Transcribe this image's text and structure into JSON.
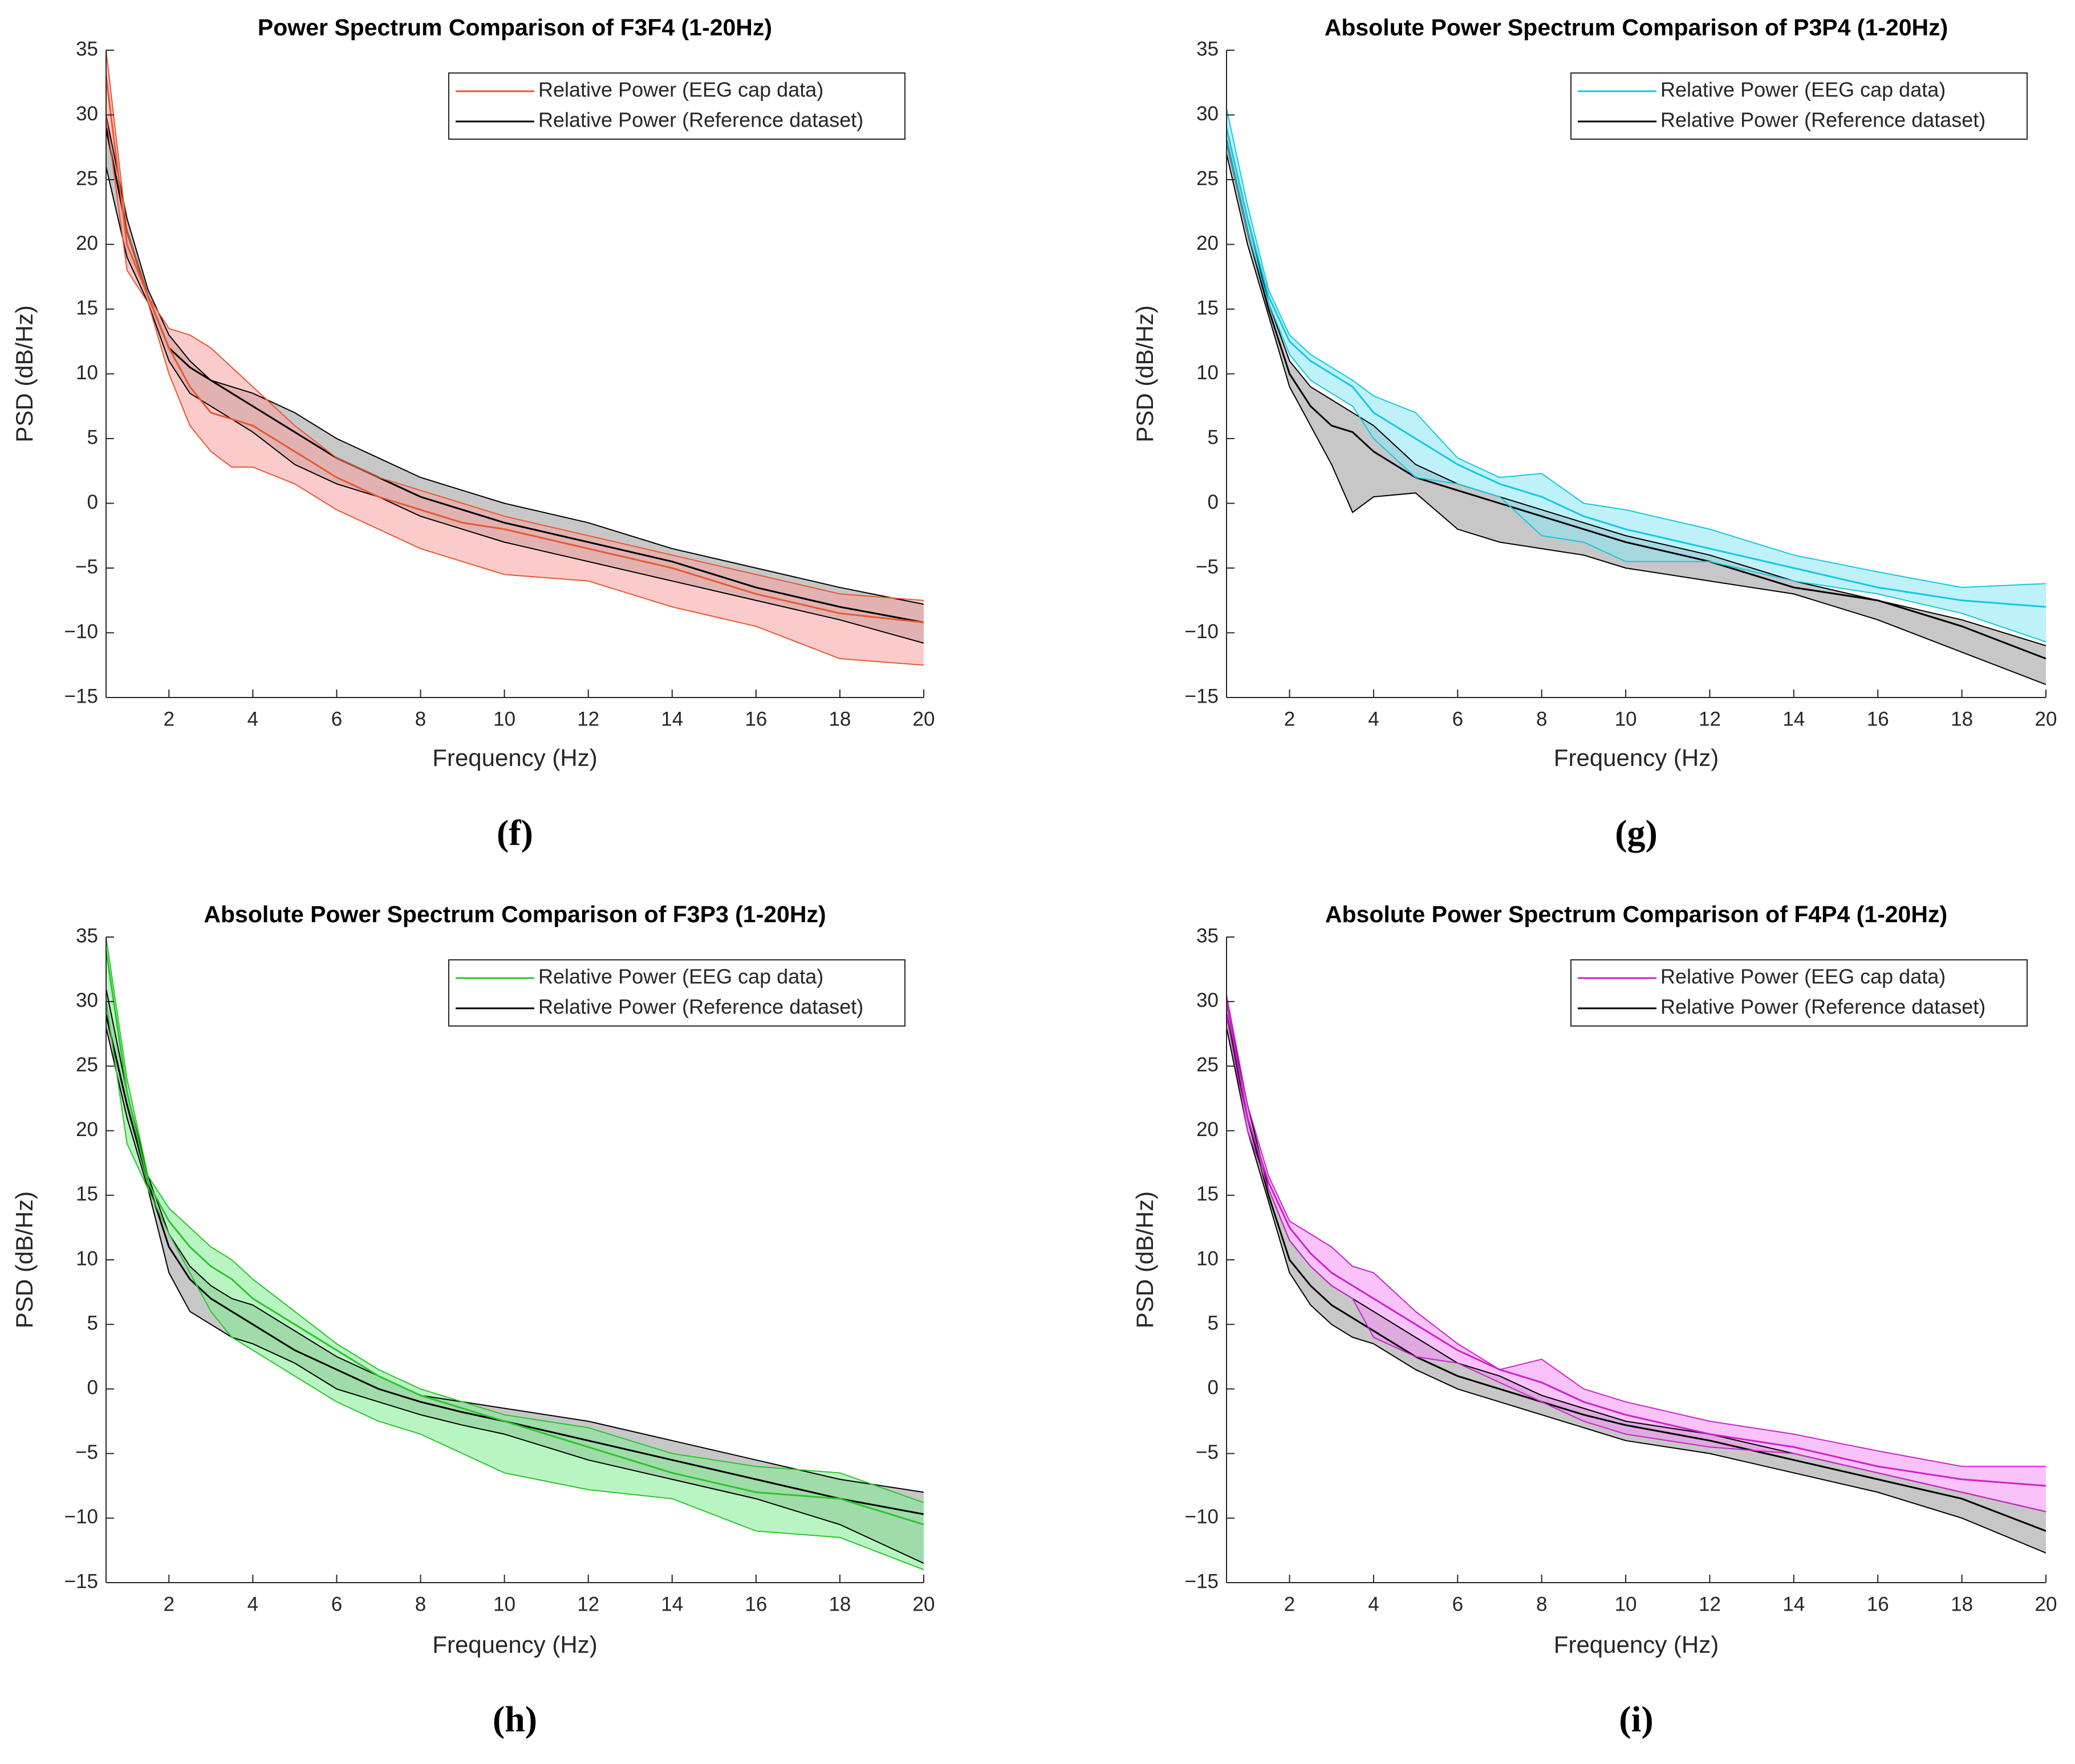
{
  "chart_data": [
    {
      "type": "line",
      "title": "Power Spectrum Comparison of F3F4 (1-20Hz)",
      "xlabel": "Frequency (Hz)",
      "ylabel": "PSD (dB/Hz)",
      "caption": "(f)",
      "legend": "upper right",
      "x": [
        0.5,
        1,
        1.5,
        2,
        2.5,
        3,
        3.5,
        4,
        5,
        6,
        7,
        8,
        9,
        10,
        12,
        14,
        16,
        18,
        20
      ],
      "xlim": [
        0.5,
        20
      ],
      "xticks": [
        2,
        4,
        6,
        8,
        10,
        12,
        14,
        16,
        18,
        20
      ],
      "ylim": [
        -15,
        35
      ],
      "yticks": [
        {
          "value": -15,
          "label": "−15"
        },
        {
          "value": -10,
          "label": "−10"
        },
        {
          "value": -5,
          "label": "−5"
        },
        0,
        5,
        10,
        15,
        20,
        25,
        30,
        35
      ],
      "series": [
        {
          "name": "Relative Power (EEG cap data)",
          "color": "#e8582f",
          "band_color": "#f8a0a0",
          "values": [
            33,
            20,
            16,
            12,
            9,
            7,
            6.5,
            6,
            4,
            2,
            0.5,
            -0.5,
            -1.5,
            -2,
            -3.5,
            -5,
            -7,
            -8.5,
            -9.2
          ],
          "upper": [
            35,
            21,
            16,
            13.5,
            13,
            12,
            10.5,
            9,
            6,
            3.5,
            2,
            1,
            0,
            -1,
            -2.5,
            -4,
            -5.5,
            -7,
            -7.5
          ],
          "lower": [
            30,
            18,
            15.5,
            10,
            6,
            4,
            2.8,
            2.8,
            1.5,
            -0.5,
            -2,
            -3.5,
            -4.5,
            -5.5,
            -6,
            -8,
            -9.5,
            -12,
            -12.5
          ]
        },
        {
          "name": "Relative Power (Reference dataset)",
          "color": "#000000",
          "band_color": "#b4b4b4",
          "values": [
            29,
            21,
            16,
            12,
            10.5,
            9.5,
            8.5,
            7.5,
            5.5,
            3.5,
            2,
            0.5,
            -0.5,
            -1.5,
            -3,
            -4.5,
            -6.5,
            -8,
            -9.2
          ],
          "upper": [
            30,
            22,
            16.5,
            13,
            11,
            9.5,
            9,
            8.5,
            7,
            5,
            3.5,
            2,
            1,
            0,
            -1.5,
            -3.5,
            -5,
            -6.5,
            -7.8
          ],
          "lower": [
            26,
            19,
            15.5,
            11,
            8.5,
            7.5,
            6.5,
            5.5,
            3,
            1.5,
            0.5,
            -1,
            -2,
            -3,
            -4.5,
            -6,
            -7.5,
            -9,
            -10.8
          ]
        }
      ]
    },
    {
      "type": "line",
      "title": "Absolute Power Spectrum Comparison of P3P4 (1-20Hz)",
      "xlabel": "Frequency (Hz)",
      "ylabel": "PSD (dB/Hz)",
      "caption": "(g)",
      "legend": "upper right",
      "x": [
        0.5,
        1,
        1.5,
        2,
        2.5,
        3,
        3.5,
        4,
        5,
        6,
        7,
        8,
        9,
        10,
        12,
        14,
        16,
        18,
        20
      ],
      "xlim": [
        0.5,
        20
      ],
      "xticks": [
        2,
        4,
        6,
        8,
        10,
        12,
        14,
        16,
        18,
        20
      ],
      "ylim": [
        -15,
        35
      ],
      "yticks": [
        {
          "value": -15,
          "label": "−15"
        },
        {
          "value": -10,
          "label": "−10"
        },
        {
          "value": -5,
          "label": "−5"
        },
        0,
        5,
        10,
        15,
        20,
        25,
        30,
        35
      ],
      "series": [
        {
          "name": "Relative Power (EEG cap data)",
          "color": "#14c8e0",
          "band_color": "#8ae6f4",
          "values": [
            29,
            22,
            16,
            12.5,
            11,
            10,
            9,
            7,
            5,
            3,
            1.5,
            0.5,
            -1,
            -2,
            -3.5,
            -5,
            -6.5,
            -7.5,
            -8
          ],
          "upper": [
            30.5,
            23,
            16.5,
            13,
            11.5,
            10.5,
            9.5,
            8.3,
            7,
            3.5,
            2,
            2.3,
            0,
            -0.5,
            -2,
            -4,
            -5.3,
            -6.5,
            -6.2
          ],
          "lower": [
            28,
            21,
            15.5,
            11.5,
            9.5,
            8.5,
            7.5,
            5,
            2,
            1.5,
            0.5,
            -2.5,
            -3,
            -4.5,
            -4.5,
            -6,
            -7,
            -8.5,
            -10.7
          ]
        },
        {
          "name": "Relative Power (Reference dataset)",
          "color": "#000000",
          "band_color": "#b4b4b4",
          "values": [
            28,
            21,
            15,
            10,
            7.5,
            6,
            5.5,
            4,
            2,
            1,
            0,
            -1,
            -2,
            -3,
            -4.5,
            -6.5,
            -7.5,
            -9.5,
            -12
          ],
          "upper": [
            29,
            22,
            15.5,
            11,
            9,
            8,
            7,
            6,
            3,
            1.5,
            0.5,
            -0.5,
            -1.5,
            -2.5,
            -4,
            -6,
            -7.5,
            -9,
            -11
          ],
          "lower": [
            27,
            20,
            14.5,
            9,
            6,
            3,
            -0.7,
            0.5,
            0.8,
            -2,
            -3,
            -3.5,
            -4,
            -5,
            -6,
            -7,
            -9,
            -11.5,
            -14
          ]
        }
      ]
    },
    {
      "type": "line",
      "title": "Absolute Power Spectrum Comparison of F3P3 (1-20Hz)",
      "xlabel": "Frequency (Hz)",
      "ylabel": "PSD (dB/Hz)",
      "caption": "(h)",
      "legend": "upper right",
      "x": [
        0.5,
        1,
        1.5,
        2,
        2.5,
        3,
        3.5,
        4,
        5,
        6,
        7,
        8,
        9,
        10,
        12,
        14,
        16,
        18,
        20
      ],
      "xlim": [
        0.5,
        20
      ],
      "xticks": [
        2,
        4,
        6,
        8,
        10,
        12,
        14,
        16,
        18,
        20
      ],
      "ylim": [
        -15,
        35
      ],
      "yticks": [
        {
          "value": -15,
          "label": "−15"
        },
        {
          "value": -10,
          "label": "−10"
        },
        {
          "value": -5,
          "label": "−5"
        },
        0,
        5,
        10,
        15,
        20,
        25,
        30,
        35
      ],
      "series": [
        {
          "name": "Relative Power (EEG cap data)",
          "color": "#2cc42c",
          "band_color": "#7fec90",
          "values": [
            34,
            23,
            16,
            13,
            11,
            9.5,
            8.5,
            7,
            5,
            3,
            1,
            -0.5,
            -1.5,
            -2.5,
            -4.5,
            -6.5,
            -8,
            -8.5,
            -10.5
          ],
          "upper": [
            35,
            24,
            16.5,
            14,
            12.5,
            11,
            10,
            8.5,
            6,
            3.5,
            1.5,
            0,
            -1,
            -2,
            -3,
            -5,
            -6,
            -6.5,
            -8.8
          ],
          "lower": [
            30,
            19,
            15.5,
            12,
            9,
            6,
            4,
            3,
            1,
            -1,
            -2.5,
            -3.5,
            -5,
            -6.5,
            -7.8,
            -8.5,
            -11,
            -11.5,
            -14
          ]
        },
        {
          "name": "Relative Power (Reference dataset)",
          "color": "#000000",
          "band_color": "#b4b4b4",
          "values": [
            29,
            22,
            16,
            11,
            8.5,
            7,
            6,
            5,
            3,
            1.5,
            0,
            -1,
            -1.8,
            -2.5,
            -4,
            -5.5,
            -7,
            -8.5,
            -9.7
          ],
          "upper": [
            31,
            23,
            16.5,
            12,
            9.5,
            8,
            7,
            6.5,
            4.5,
            2.5,
            1,
            -0.5,
            -1,
            -1.5,
            -2.5,
            -4,
            -5.5,
            -7,
            -8
          ],
          "lower": [
            28,
            21,
            15.5,
            9,
            6,
            5,
            4,
            3.5,
            2,
            0,
            -1,
            -2,
            -2.8,
            -3.5,
            -5.5,
            -7,
            -8.5,
            -10.5,
            -13.5
          ]
        }
      ]
    },
    {
      "type": "line",
      "title": "Absolute Power Spectrum Comparison of F4P4 (1-20Hz)",
      "xlabel": "Frequency (Hz)",
      "ylabel": "PSD (dB/Hz)",
      "caption": "(i)",
      "legend": "upper right",
      "x": [
        0.5,
        1,
        1.5,
        2,
        2.5,
        3,
        3.5,
        4,
        5,
        6,
        7,
        8,
        9,
        10,
        12,
        14,
        16,
        18,
        20
      ],
      "xlim": [
        0.5,
        20
      ],
      "xticks": [
        2,
        4,
        6,
        8,
        10,
        12,
        14,
        16,
        18,
        20
      ],
      "ylim": [
        -15,
        35
      ],
      "yticks": [
        {
          "value": -15,
          "label": "−15"
        },
        {
          "value": -10,
          "label": "−10"
        },
        {
          "value": -5,
          "label": "−5"
        },
        0,
        5,
        10,
        15,
        20,
        25,
        30,
        35
      ],
      "series": [
        {
          "name": "Relative Power (EEG cap data)",
          "color": "#cc22cc",
          "band_color": "#f490f4",
          "values": [
            30,
            21,
            16,
            12.5,
            10.5,
            9,
            8,
            7,
            5,
            3,
            1.5,
            0.5,
            -1,
            -2,
            -3.5,
            -4.5,
            -6,
            -7,
            -7.5
          ],
          "upper": [
            30.5,
            22,
            16.5,
            13,
            12,
            11,
            9.5,
            9,
            6,
            3.5,
            1.5,
            2.3,
            0,
            -1,
            -2.5,
            -3.5,
            -4.8,
            -6,
            -6
          ],
          "lower": [
            29,
            20,
            15.5,
            11.5,
            9.5,
            8,
            7,
            4,
            2.5,
            2,
            0.5,
            -1,
            -2.5,
            -3.5,
            -4.5,
            -5,
            -6.5,
            -8,
            -9.5
          ]
        },
        {
          "name": "Relative Power (Reference dataset)",
          "color": "#000000",
          "band_color": "#b4b4b4",
          "values": [
            29,
            21,
            15,
            10,
            8,
            6.5,
            5.5,
            4.5,
            2.5,
            1,
            0,
            -1,
            -2,
            -2.8,
            -4,
            -5.5,
            -7,
            -8.5,
            -11
          ],
          "upper": [
            30,
            22,
            15.5,
            11.5,
            9.5,
            8,
            7,
            6,
            4,
            2,
            1,
            -0.5,
            -1.5,
            -2.5,
            -3.5,
            -5,
            -6.5,
            -8,
            -9.5
          ],
          "lower": [
            28,
            20,
            14.5,
            9,
            6.5,
            5,
            4,
            3.5,
            1.5,
            0,
            -1,
            -2,
            -3,
            -4,
            -5,
            -6.5,
            -8,
            -10,
            -12.7
          ]
        }
      ]
    }
  ]
}
